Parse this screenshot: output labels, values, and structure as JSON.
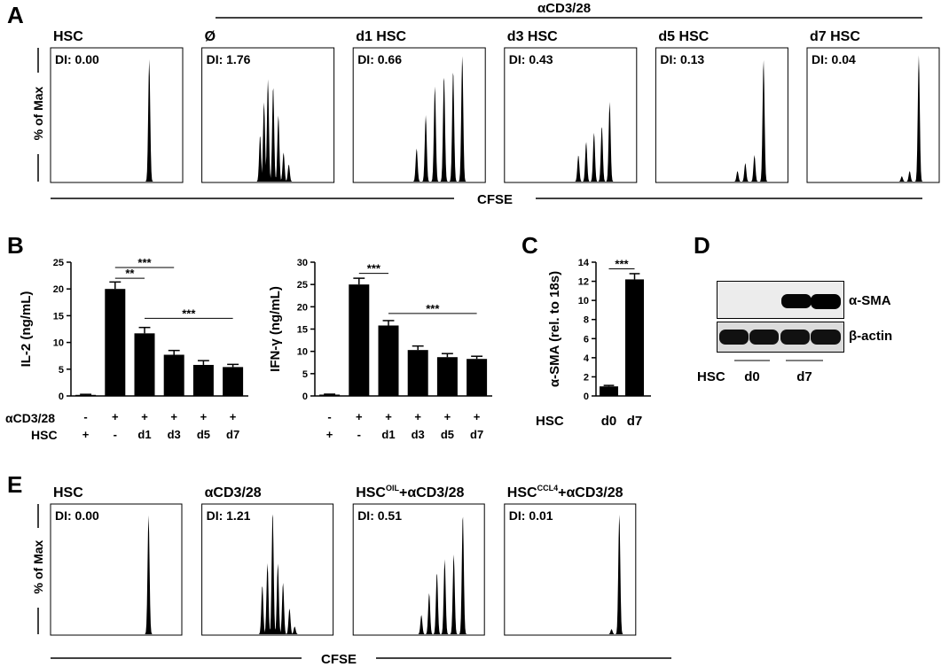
{
  "panel_letters": [
    "A",
    "B",
    "C",
    "D",
    "E"
  ],
  "panel_a": {
    "group_label": "αCD3/28",
    "ylabel": "% of Max",
    "xlabel": "CFSE",
    "histograms": [
      {
        "title": "HSC",
        "di": "DI: 0.00",
        "peaks": [
          [
            0.75,
            0.92
          ]
        ]
      },
      {
        "title": "Ø",
        "di": "DI: 1.76",
        "peaks": [
          [
            0.44,
            0.35
          ],
          [
            0.47,
            0.6
          ],
          [
            0.5,
            0.77
          ],
          [
            0.54,
            0.72
          ],
          [
            0.58,
            0.5
          ],
          [
            0.62,
            0.22
          ],
          [
            0.66,
            0.13
          ]
        ]
      },
      {
        "title": "d1 HSC",
        "di": "DI: 0.66",
        "peaks": [
          [
            0.48,
            0.25
          ],
          [
            0.55,
            0.5
          ],
          [
            0.62,
            0.72
          ],
          [
            0.69,
            0.8
          ],
          [
            0.76,
            0.84
          ],
          [
            0.83,
            0.95
          ]
        ]
      },
      {
        "title": "d3 HSC",
        "di": "DI: 0.43",
        "peaks": [
          [
            0.56,
            0.2
          ],
          [
            0.62,
            0.3
          ],
          [
            0.68,
            0.37
          ],
          [
            0.74,
            0.42
          ],
          [
            0.8,
            0.6
          ]
        ]
      },
      {
        "title": "d5 HSC",
        "di": "DI: 0.13",
        "peaks": [
          [
            0.62,
            0.08
          ],
          [
            0.68,
            0.14
          ],
          [
            0.75,
            0.2
          ],
          [
            0.82,
            0.92
          ]
        ]
      },
      {
        "title": "d7 HSC",
        "di": "DI: 0.04",
        "peaks": [
          [
            0.72,
            0.04
          ],
          [
            0.78,
            0.08
          ],
          [
            0.85,
            0.95
          ]
        ]
      }
    ]
  },
  "panel_b": {
    "row_labels": [
      "αCD3/28",
      "HSC"
    ],
    "charts": [
      {
        "ylabel": "IL-2 (ng/mL)",
        "ylim": [
          0,
          25
        ],
        "yticks": [
          0,
          5,
          10,
          15,
          20,
          25
        ],
        "values": [
          0.2,
          20,
          11.7,
          7.7,
          5.8,
          5.4
        ],
        "errors": [
          0.1,
          1.3,
          1.1,
          0.8,
          0.8,
          0.5
        ],
        "row1": [
          "-",
          "+",
          "+",
          "+",
          "+",
          "+"
        ],
        "row2": [
          "+",
          "-",
          "d1",
          "d3",
          "d5",
          "d7"
        ],
        "sig": [
          {
            "label": "**",
            "from": 1,
            "to": 2,
            "y": 22
          },
          {
            "label": "***",
            "from": 1,
            "to": 3,
            "y": 24
          },
          {
            "label": "***",
            "from": 2,
            "to": 5,
            "y": 14.5
          }
        ]
      },
      {
        "ylabel": "IFN-γ (ng/mL)",
        "ylim": [
          0,
          30
        ],
        "yticks": [
          0,
          5,
          10,
          15,
          20,
          25,
          30
        ],
        "values": [
          0.3,
          25,
          15.8,
          10.3,
          8.7,
          8.3
        ],
        "errors": [
          0.1,
          1.4,
          1.1,
          0.9,
          0.8,
          0.6
        ],
        "row1": [
          "-",
          "+",
          "+",
          "+",
          "+",
          "+"
        ],
        "row2": [
          "+",
          "-",
          "d1",
          "d3",
          "d5",
          "d7"
        ],
        "sig": [
          {
            "label": "***",
            "from": 1,
            "to": 2,
            "y": 27.5
          },
          {
            "label": "***",
            "from": 2,
            "to": 5,
            "y": 18.5
          }
        ]
      }
    ]
  },
  "panel_c": {
    "ylabel": "α-SMA (rel. to 18s)",
    "ylim": [
      0,
      14
    ],
    "yticks": [
      0,
      2,
      4,
      6,
      8,
      10,
      12,
      14
    ],
    "row_label": "HSC",
    "categories": [
      "d0",
      "d7"
    ],
    "values": [
      1,
      12.2
    ],
    "errors": [
      0.1,
      0.6
    ],
    "sig": [
      {
        "label": "***",
        "from": 0,
        "to": 1,
        "y": 13.3
      }
    ]
  },
  "panel_d": {
    "bands": [
      "α-SMA",
      "β-actin"
    ],
    "row_label": "HSC",
    "groups": [
      "d0",
      "d7"
    ]
  },
  "panel_e": {
    "ylabel": "% of Max",
    "xlabel": "CFSE",
    "histograms": [
      {
        "title": "HSC",
        "title_sup": "",
        "title_tail": "",
        "di": "DI: 0.00",
        "peaks": [
          [
            0.75,
            0.92
          ]
        ]
      },
      {
        "title": "αCD3/28",
        "title_sup": "",
        "title_tail": "",
        "di": "DI: 1.21",
        "peaks": [
          [
            0.46,
            0.38
          ],
          [
            0.5,
            0.55
          ],
          [
            0.54,
            0.95
          ],
          [
            0.58,
            0.55
          ],
          [
            0.62,
            0.4
          ],
          [
            0.67,
            0.2
          ],
          [
            0.71,
            0.06
          ]
        ]
      },
      {
        "title": "HSC",
        "title_sup": "OIL",
        "title_tail": "+αCD3/28",
        "di": "DI: 0.51",
        "peaks": [
          [
            0.52,
            0.15
          ],
          [
            0.58,
            0.32
          ],
          [
            0.64,
            0.48
          ],
          [
            0.7,
            0.58
          ],
          [
            0.77,
            0.62
          ],
          [
            0.84,
            0.93
          ]
        ]
      },
      {
        "title": "HSC",
        "title_sup": "CCL4",
        "title_tail": "+αCD3/28",
        "di": "DI: 0.01",
        "peaks": [
          [
            0.82,
            0.04
          ],
          [
            0.88,
            0.93
          ]
        ]
      }
    ]
  }
}
